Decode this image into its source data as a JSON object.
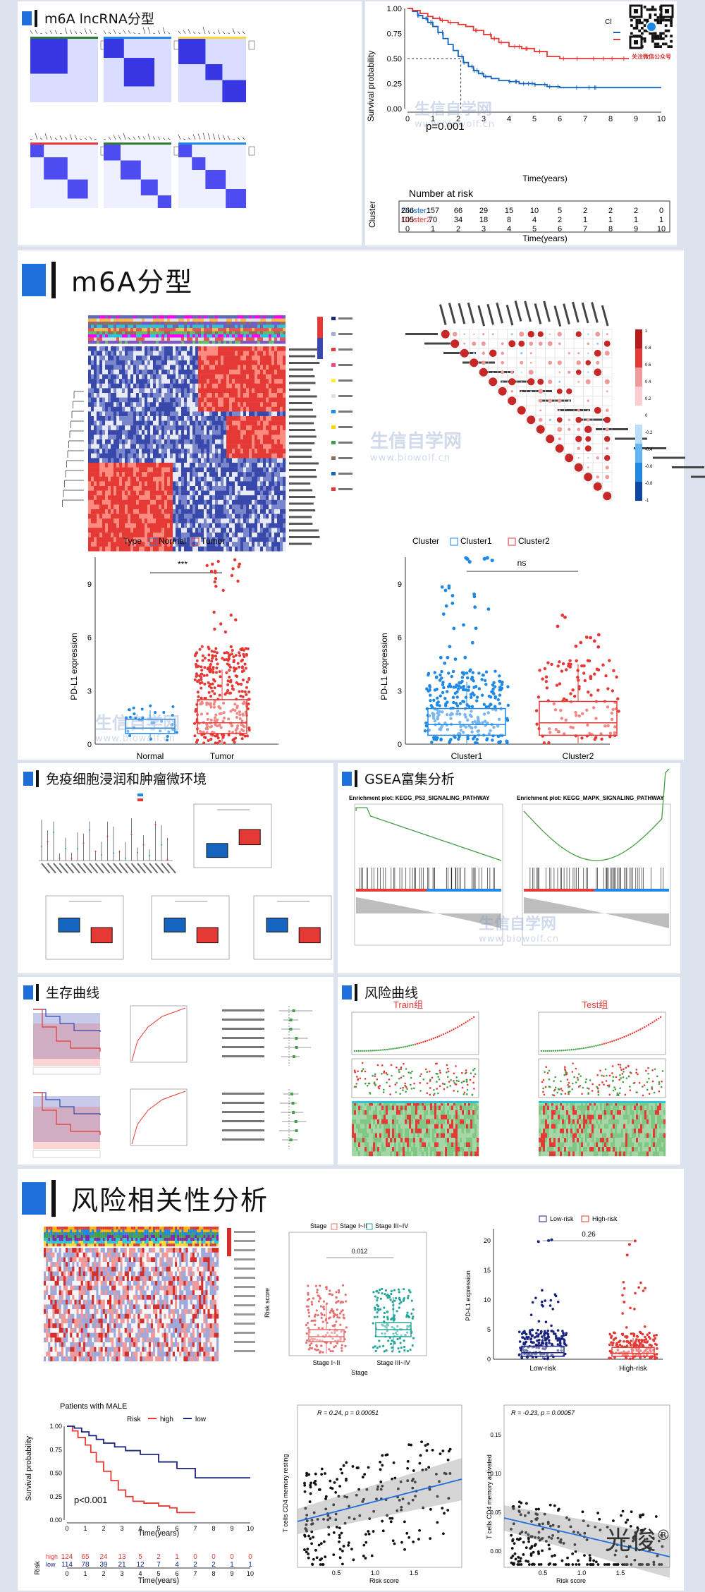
{
  "sections": {
    "s1": "m6A lncRNA分型",
    "s2": "m6A分型",
    "s3": "免疫细胞浸润和肿瘤微环境",
    "s4": "GSEA富集分析",
    "s5": "生存曲线",
    "s6": "风险曲线",
    "s7": "风险相关性分析"
  },
  "watermark": {
    "text": "生信自学网",
    "url": "www.biowolf.cn"
  },
  "logo": {
    "text": "光俊",
    "mark": "®"
  },
  "qr": {
    "caption": "关注微信公众号"
  },
  "km1": {
    "ylabel": "Survival probability",
    "xlabel": "Time(years)",
    "pvalue": "p=0.001",
    "yticks": [
      "1.00",
      "0.75",
      "0.50",
      "0.25",
      "0.00"
    ],
    "xticks": [
      "0",
      "1",
      "2",
      "3",
      "4",
      "5",
      "6",
      "7",
      "8",
      "9",
      "10"
    ],
    "risk_title": "Number at risk",
    "risk_ylabel": "Cluster",
    "risk_rows": [
      {
        "name": "Cluster1",
        "color": "#1565c0",
        "values": [
          "266",
          "157",
          "66",
          "29",
          "15",
          "10",
          "5",
          "2",
          "2",
          "2",
          "0"
        ]
      },
      {
        "name": "Cluster2",
        "color": "#e53935",
        "values": [
          "105",
          "70",
          "34",
          "18",
          "8",
          "4",
          "2",
          "1",
          "1",
          "1",
          "1"
        ]
      }
    ],
    "legend_cl": "Cl"
  },
  "box_type": {
    "legend_title": "Type",
    "legend": [
      "Normal",
      "Tumor"
    ],
    "ylabel": "PD-L1 expression",
    "categories": [
      "Normal",
      "Tumor"
    ],
    "yticks": [
      "0",
      "3",
      "6",
      "9"
    ],
    "sig": "***"
  },
  "box_cluster": {
    "legend_title": "Cluster",
    "legend": [
      "Cluster1",
      "Cluster2"
    ],
    "ylabel": "PD-L1 expression",
    "categories": [
      "Cluster1",
      "Cluster2"
    ],
    "yticks": [
      "0",
      "3",
      "6",
      "9"
    ],
    "sig": "ns"
  },
  "gsea": [
    {
      "title": "Enrichment plot: KEGG_P53_SIGNALING_PATHWAY"
    },
    {
      "title": "Enrichment plot: KEGG_MAPK_SIGNALING_PATHWAY"
    }
  ],
  "risk_curve": {
    "train": "Train组",
    "test": "Test组"
  },
  "km2": {
    "title": "Patients with MALE",
    "legend_title": "Risk",
    "legend": [
      "high",
      "low"
    ],
    "ylabel": "Survival probability",
    "xlabel": "Time(years)",
    "pvalue": "p<0.001",
    "yticks": [
      "1.00",
      "0.75",
      "0.50",
      "0.25",
      "0.00"
    ],
    "xticks": [
      "0",
      "1",
      "2",
      "3",
      "4",
      "5",
      "6",
      "7",
      "8",
      "9",
      "10"
    ],
    "risk_ylabel": "Risk",
    "risk_rows": [
      {
        "name": "high",
        "color": "#e53935",
        "values": [
          "124",
          "65",
          "24",
          "13",
          "5",
          "2",
          "1",
          "0",
          "0",
          "0",
          "0"
        ]
      },
      {
        "name": "low",
        "color": "#1a237e",
        "values": [
          "114",
          "78",
          "39",
          "21",
          "12",
          "7",
          "4",
          "2",
          "2",
          "1",
          "1"
        ]
      }
    ]
  },
  "stage_box": {
    "legend_title": "Stage",
    "legend": [
      "Stage I~II",
      "Stage III~IV"
    ],
    "ylabel": "Risk score",
    "xlabel": "Stage",
    "categories": [
      "Stage I~II",
      "Stage III~IV"
    ],
    "pvalue": "0.012"
  },
  "risk_box": {
    "legend": [
      "Low-risk",
      "High-risk"
    ],
    "ylabel": "PD-L1 expression",
    "categories": [
      "Low-risk",
      "High-risk"
    ],
    "pvalue": "0.26",
    "yticks": [
      "0",
      "5",
      "10",
      "15",
      "20"
    ]
  },
  "scatter1": {
    "annotation": "R = 0.24, p = 0.00051",
    "ylabel": "T cells CD4 memory resting",
    "xlabel": "Risk score",
    "xticks": [
      "0.5",
      "1.0",
      "1.5"
    ]
  },
  "scatter2": {
    "annotation": "R = -0.23, p = 0.00057",
    "ylabel": "T cells CD4 memory activated",
    "xlabel": "Risk score",
    "xticks": [
      "0.5",
      "1.0",
      "1.5"
    ],
    "yticks": [
      "0.00",
      "0.05",
      "0.10",
      "0.15"
    ]
  }
}
